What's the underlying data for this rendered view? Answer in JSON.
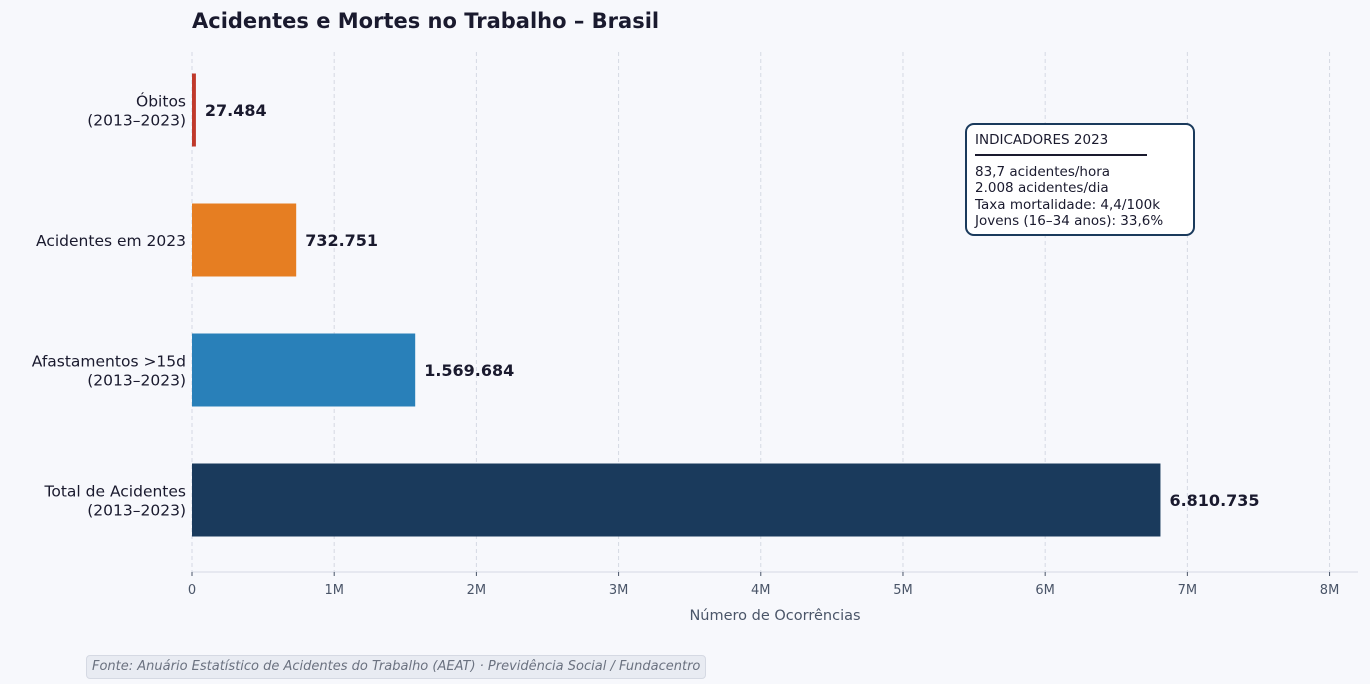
{
  "chart_data": {
    "type": "bar",
    "orientation": "horizontal",
    "title": "Acidentes e Mortes no Trabalho – Brasil",
    "xlabel": "Número de Ocorrências",
    "ylabel": "",
    "xlim": [
      0,
      8200000
    ],
    "grid": "x dashed",
    "categories": [
      [
        "Óbitos",
        "(2013–2023)"
      ],
      [
        "Acidentes em 2023"
      ],
      [
        "Afastamentos >15d",
        "(2013–2023)"
      ],
      [
        "Total de Acidentes",
        "(2013–2023)"
      ]
    ],
    "values": [
      27484,
      732751,
      1569684,
      6810735
    ],
    "value_labels": [
      "27.484",
      "732.751",
      "1.569.684",
      "6.810.735"
    ],
    "colors": [
      "#c0392b",
      "#e67e22",
      "#2980b9",
      "#1a3a5c"
    ],
    "x_ticks": [
      0,
      1000000,
      2000000,
      3000000,
      4000000,
      5000000,
      6000000,
      7000000,
      8000000
    ],
    "x_tick_labels": [
      "0",
      "1M",
      "2M",
      "3M",
      "4M",
      "5M",
      "6M",
      "7M",
      "8M"
    ],
    "annotation": {
      "title": "INDICADORES 2023",
      "lines": [
        "83,7 acidentes/hora",
        "2.008 acidentes/dia",
        "Taxa mortalidade: 4,4/100k",
        "Jovens (16–34 anos): 33,6%"
      ],
      "border_color": "#1a3a5c"
    }
  },
  "source": "Fonte: Anuário Estatístico de Acidentes do Trabalho (AEAT) · Previdência Social / Fundacentro"
}
